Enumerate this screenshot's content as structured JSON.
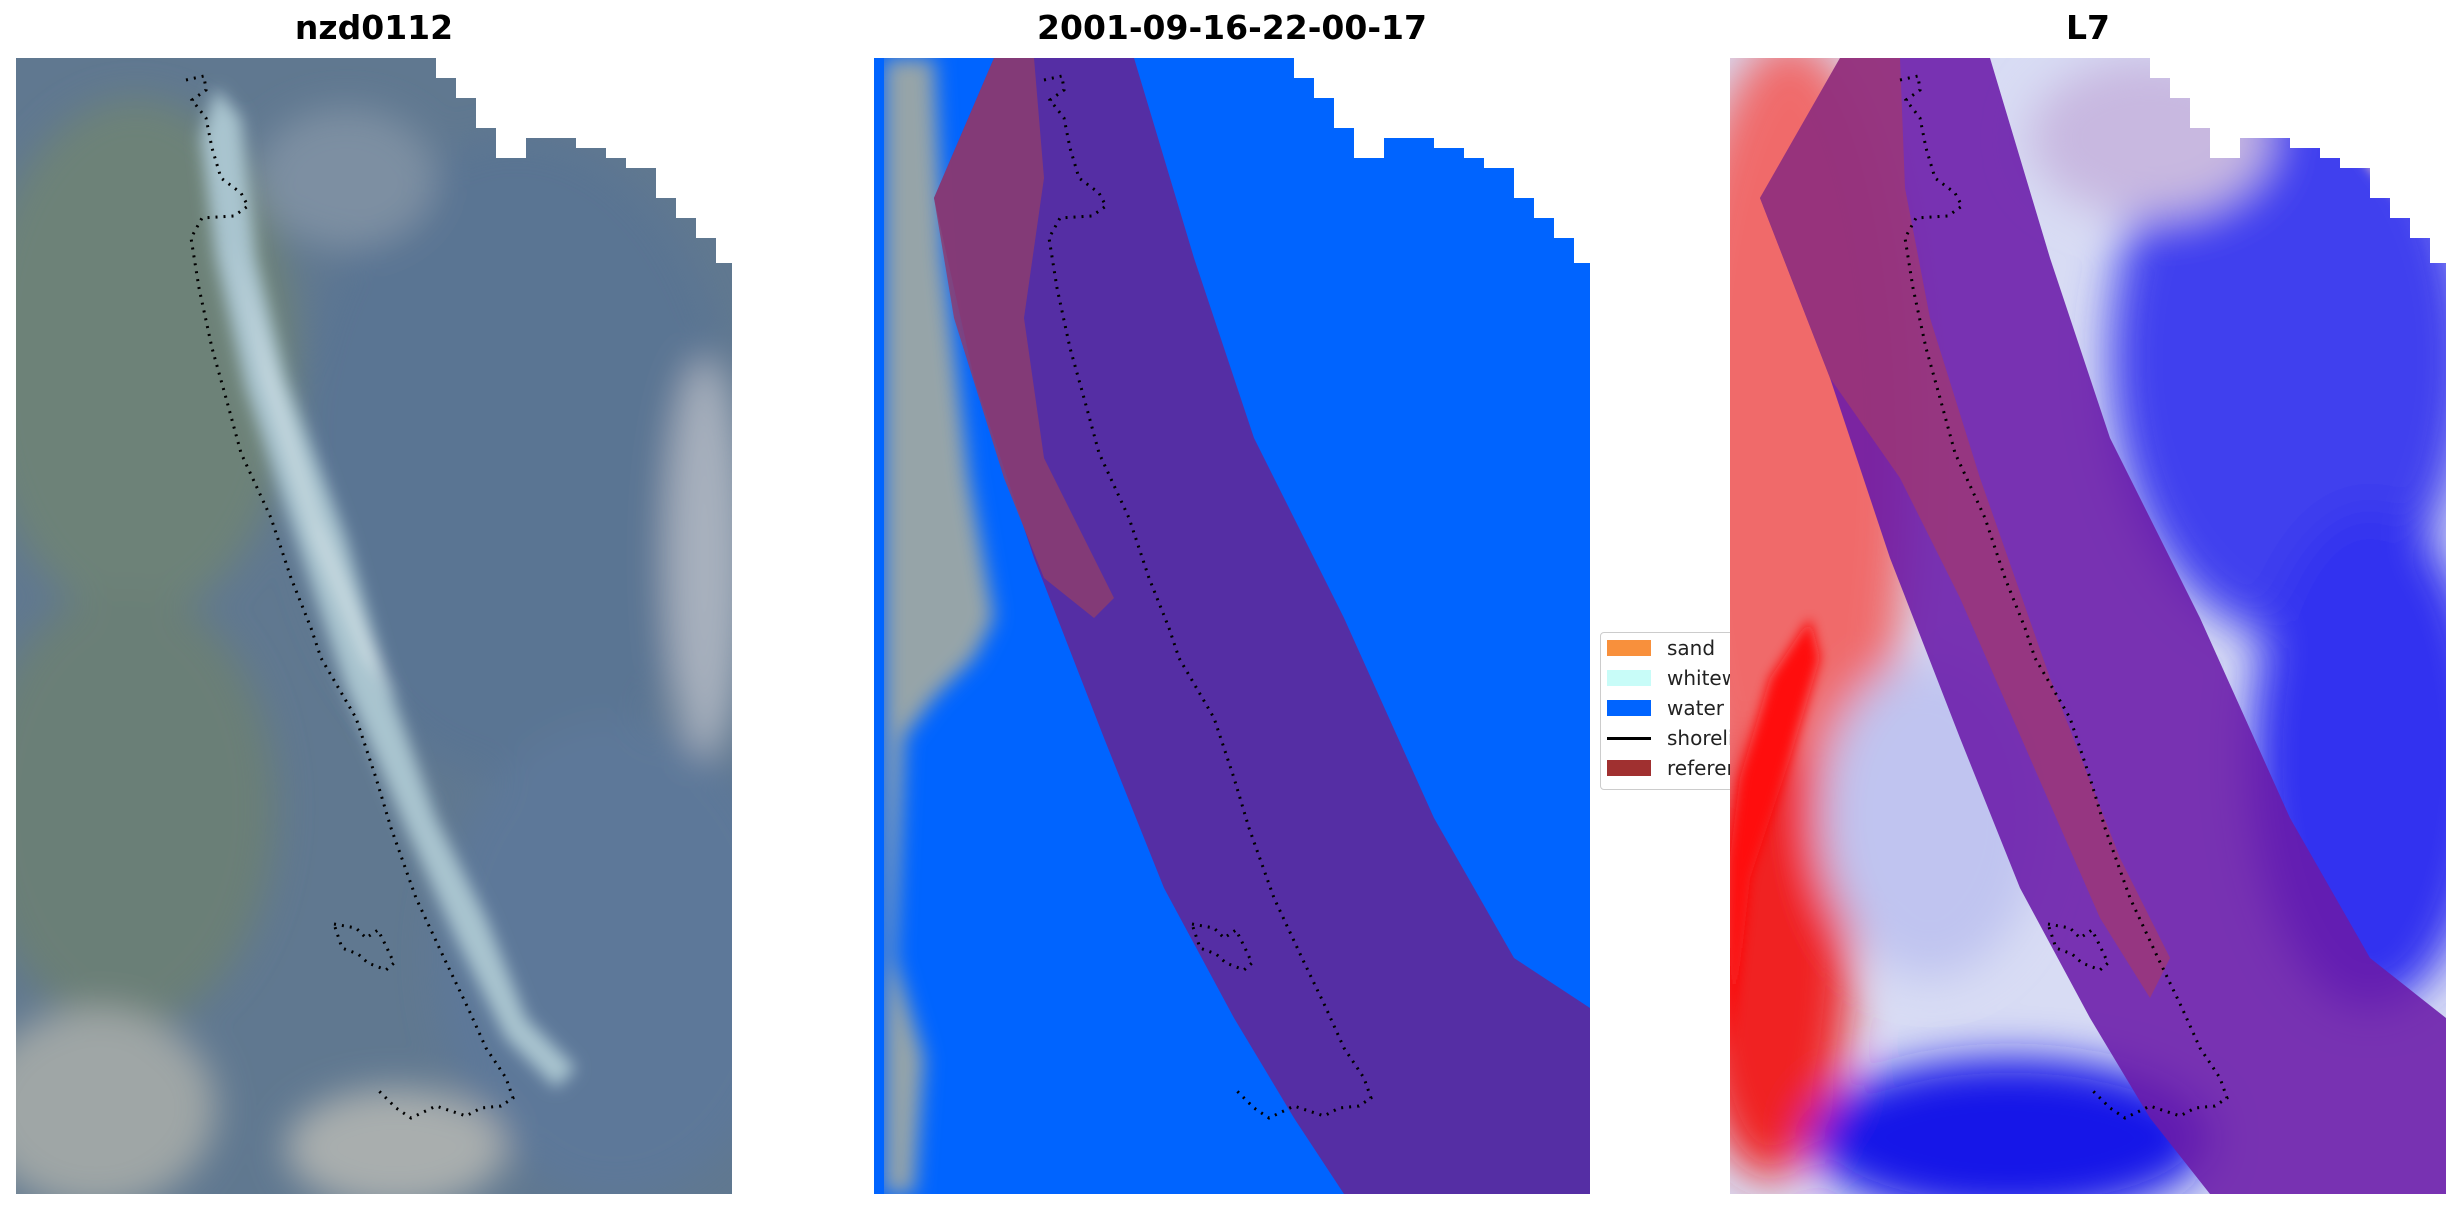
{
  "panels": [
    {
      "title": "nzd0112"
    },
    {
      "title": "2001-09-16-22-00-17"
    },
    {
      "title": "L7"
    }
  ],
  "legend": {
    "items": [
      {
        "label": "sand",
        "color": "#f8903c"
      },
      {
        "label": "whitewater",
        "color": "#c8fcf8"
      },
      {
        "label": "water",
        "color": "#0064ff"
      },
      {
        "label": "shoreline",
        "color": "#000000"
      },
      {
        "label": "reference",
        "color": "#a03030"
      }
    ]
  },
  "colors": {
    "water_class": "#0064ff",
    "buffer_overlay": "#6a2aa0",
    "land_overlay": "#a04070"
  }
}
